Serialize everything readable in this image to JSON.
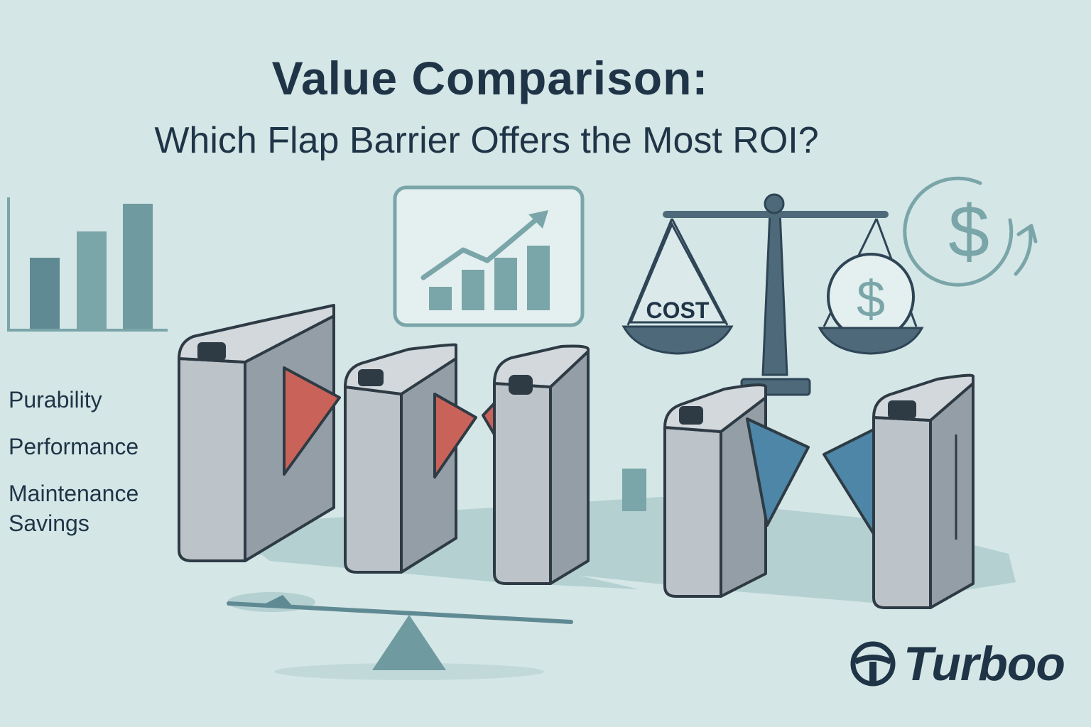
{
  "title": "Value Comparison:",
  "subtitle": "Which Flap Barrier Offers the Most ROI?",
  "features": [
    "Purability",
    "Performance",
    "Maintenance",
    "Savings"
  ],
  "scale": {
    "left_pan_label": "COST",
    "right_pan_symbol": "$"
  },
  "roi_symbol": "$",
  "brand": {
    "name": "Turboo",
    "icon": "steering-wheel-icon"
  },
  "colors": {
    "background": "#d4e6e6",
    "text": "#1f3547",
    "flap_red": "#c9635a",
    "flap_blue": "#4d86a6",
    "chart_teal": "#7aa5a9",
    "barrier_gray": "#a9b2b8"
  }
}
